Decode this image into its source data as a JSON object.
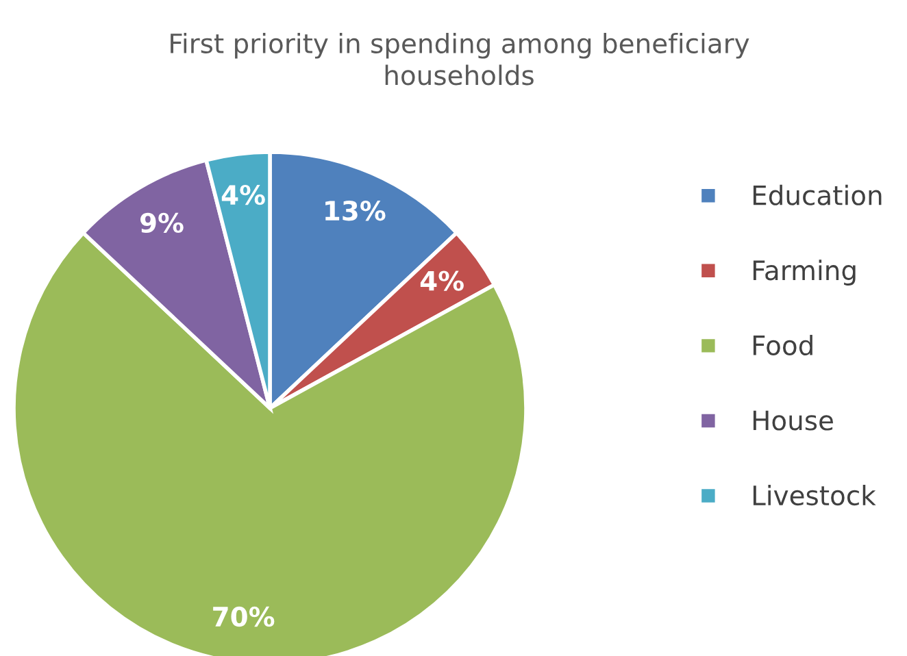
{
  "chart_data": {
    "type": "pie",
    "title": "First priority in spending among beneficiary\nhouseholds",
    "categories": [
      "Education",
      "Farming",
      "Food",
      "House",
      "Livestock"
    ],
    "values": [
      13,
      4,
      70,
      9,
      4
    ],
    "colors": [
      "#4f81bd",
      "#c0504d",
      "#9bbb59",
      "#8064a2",
      "#4bacc6"
    ],
    "value_labels": [
      "13%",
      "4%",
      "70%",
      "9%",
      "4%"
    ],
    "legend": "right"
  }
}
